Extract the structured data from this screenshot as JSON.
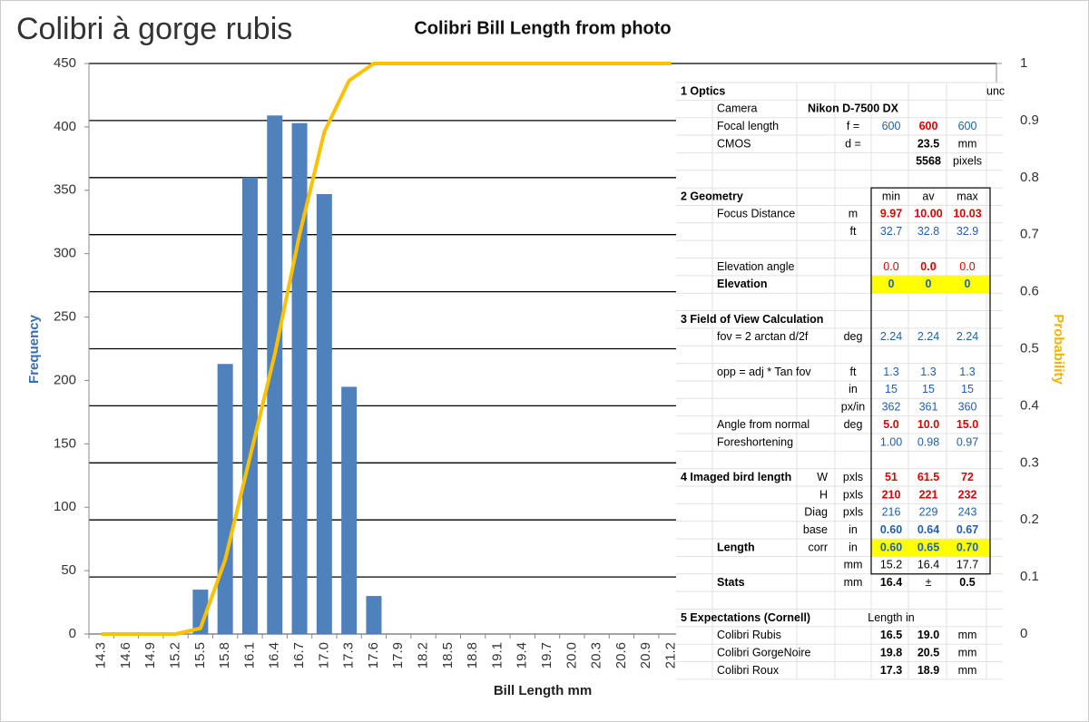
{
  "heading": "Colibri à gorge rubis",
  "chart_data": {
    "type": "bar",
    "title": "Colibri Bill Length from photo",
    "x_label": "Bill Length  mm",
    "y_label": "Frequency",
    "y2_label": "Probability",
    "categories": [
      "14.3",
      "14.6",
      "14.9",
      "15.2",
      "15.5",
      "15.8",
      "16.1",
      "16.4",
      "16.7",
      "17.0",
      "17.3",
      "17.6",
      "17.9",
      "18.2",
      "18.5",
      "18.8",
      "19.1",
      "19.4",
      "19.7",
      "20.0",
      "20.3",
      "20.6",
      "20.9",
      "21.2"
    ],
    "series": [
      {
        "type": "bar",
        "color": "#4f81bd",
        "values": [
          0,
          0,
          0,
          0,
          35,
          213,
          360,
          409,
          403,
          347,
          195,
          30,
          0,
          0,
          0,
          0,
          0,
          0,
          0,
          0,
          0,
          0,
          0,
          0
        ]
      },
      {
        "type": "line",
        "axis": "y2",
        "color": "#ffc000",
        "values": [
          0,
          0,
          0,
          0,
          0.01,
          0.13,
          0.31,
          0.49,
          0.7,
          0.88,
          0.97,
          1,
          1,
          1,
          1,
          1,
          1,
          1,
          1,
          1,
          1,
          1,
          1,
          1
        ]
      }
    ],
    "ylim": [
      0,
      450
    ],
    "yticks": [
      0,
      50,
      100,
      150,
      200,
      250,
      300,
      350,
      400,
      450
    ],
    "y2lim": [
      0,
      1
    ],
    "y2ticks": [
      0,
      0.1,
      0.2,
      0.3,
      0.4,
      0.5,
      0.6,
      0.7,
      0.8,
      0.9,
      1
    ],
    "grid": "y2"
  },
  "table": {
    "rows": [
      [
        "1 Optics",
        null,
        null,
        null,
        null,
        null,
        null,
        "unc"
      ],
      [
        null,
        "Camera",
        null,
        "Nikon D-7500 DX",
        null,
        null,
        null,
        null
      ],
      [
        null,
        "Focal length",
        null,
        "f =",
        "600",
        "600",
        "600",
        null
      ],
      [
        null,
        "CMOS",
        null,
        "d =",
        null,
        "23.5",
        "mm",
        null
      ],
      [
        null,
        null,
        null,
        null,
        null,
        "5568",
        "pixels",
        null
      ],
      [
        "2 Geometry",
        null,
        null,
        null,
        "min",
        "av",
        "max",
        null
      ],
      [
        null,
        "Focus Distance",
        null,
        "m",
        "9.97",
        "10.00",
        "10.03",
        null
      ],
      [
        null,
        null,
        null,
        "ft",
        "32.7",
        "32.8",
        "32.9",
        null
      ],
      [
        null,
        "Elevation angle",
        null,
        null,
        "0.0",
        "0.0",
        "0.0",
        null
      ],
      [
        null,
        "Elevation",
        null,
        null,
        "0",
        "0",
        "0",
        null
      ],
      [
        "3 Field of View Calculation",
        null,
        null,
        null,
        null,
        null,
        null,
        null
      ],
      [
        null,
        "fov = 2 arctan  d/2f",
        null,
        "deg",
        "2.24",
        "2.24",
        "2.24",
        null
      ],
      [
        null,
        "opp = adj * Tan fov",
        null,
        "ft",
        "1.3",
        "1.3",
        "1.3",
        null
      ],
      [
        null,
        null,
        null,
        "in",
        "15",
        "15",
        "15",
        null
      ],
      [
        null,
        null,
        null,
        "px/in",
        "362",
        "361",
        "360",
        null
      ],
      [
        null,
        "Angle from normal",
        null,
        "deg",
        "5.0",
        "10.0",
        "15.0",
        null
      ],
      [
        null,
        "Foreshortening",
        null,
        null,
        "1.00",
        "0.98",
        "0.97",
        null
      ],
      [
        "4 Imaged bird length",
        null,
        "W",
        "pxls",
        "51",
        "61.5",
        "72",
        null
      ],
      [
        null,
        null,
        "H",
        "pxls",
        "210",
        "221",
        "232",
        null
      ],
      [
        null,
        null,
        "Diag",
        "pxls",
        "216",
        "229",
        "243",
        null
      ],
      [
        null,
        null,
        "base",
        "in",
        "0.60",
        "0.64",
        "0.67",
        null
      ],
      [
        null,
        "Length",
        "corr",
        "in",
        "0.60",
        "0.65",
        "0.70",
        null
      ],
      [
        null,
        null,
        null,
        "mm",
        "15.2",
        "16.4",
        "17.7",
        null
      ],
      [
        null,
        "Stats",
        null,
        "mm",
        "16.4",
        "±",
        "0.5",
        null
      ],
      [
        "5 Expectations (Cornell)",
        null,
        null,
        null,
        "Length in",
        null,
        null,
        null
      ],
      [
        null,
        "Colibri Rubis",
        null,
        null,
        "16.5",
        "19.0",
        "mm",
        null
      ],
      [
        null,
        "Colibri GorgeNoire",
        null,
        null,
        "19.8",
        "20.5",
        "mm",
        null
      ],
      [
        null,
        "Colibri Roux",
        null,
        null,
        "17.3",
        "18.9",
        "mm",
        null
      ]
    ]
  }
}
